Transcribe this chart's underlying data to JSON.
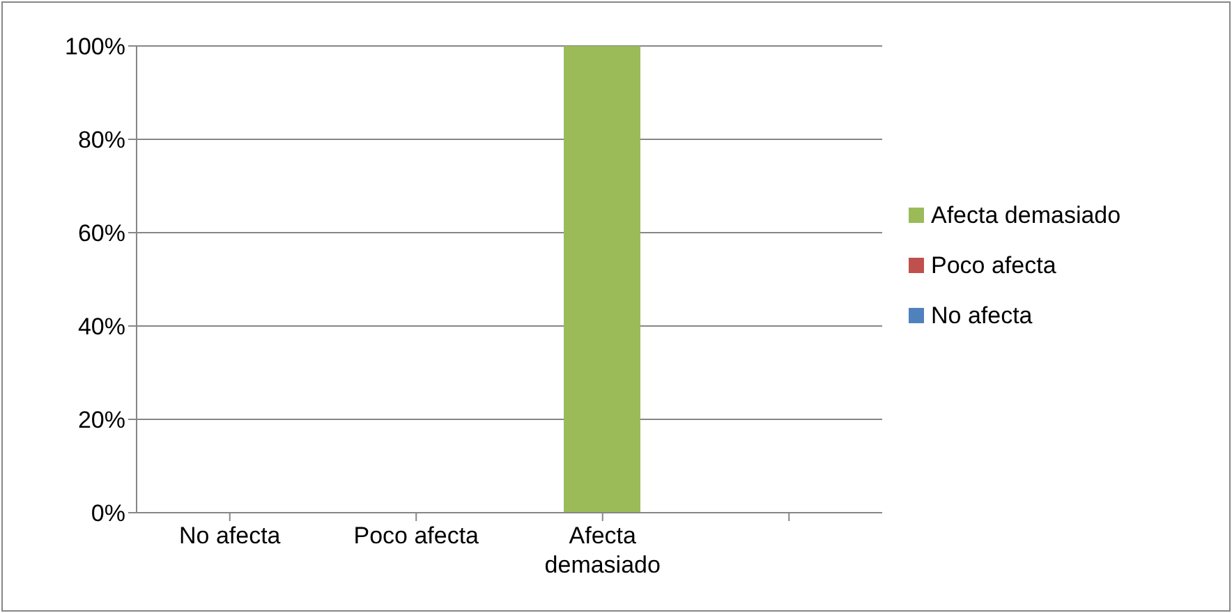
{
  "chart_data": {
    "type": "bar",
    "stacked": true,
    "categories": [
      "No afecta",
      "Poco afecta",
      "Afecta demasiado",
      null
    ],
    "series": [
      {
        "name": "No afecta",
        "color": "#4f81bd",
        "values": [
          0,
          0,
          0,
          null
        ]
      },
      {
        "name": "Poco afecta",
        "color": "#c0504d",
        "values": [
          0,
          0,
          0,
          null
        ]
      },
      {
        "name": "Afecta demasiado",
        "color": "#9bbb59",
        "values": [
          0,
          0,
          100,
          null
        ]
      }
    ],
    "ylim": [
      0,
      100
    ],
    "yticks": [
      {
        "value": 0,
        "label": "0%"
      },
      {
        "value": 20,
        "label": "20%"
      },
      {
        "value": 40,
        "label": "40%"
      },
      {
        "value": 60,
        "label": "60%"
      },
      {
        "value": 80,
        "label": "80%"
      },
      {
        "value": 100,
        "label": "100%"
      }
    ],
    "grid": "y",
    "legend": "right"
  }
}
